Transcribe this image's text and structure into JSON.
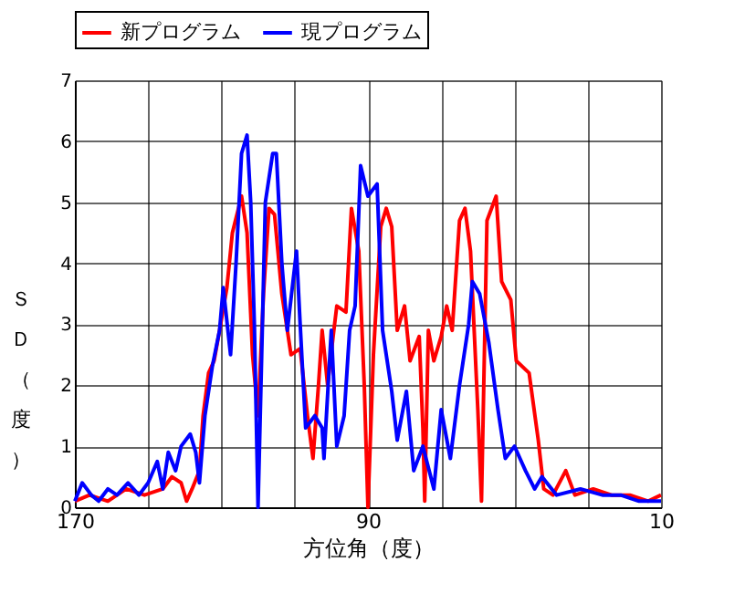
{
  "chart_data": {
    "type": "line",
    "xlabel": "方位角（度）",
    "ylabel": "ＳＤ（度）",
    "xlim": [
      170,
      10
    ],
    "ylim": [
      0,
      7
    ],
    "xticks": [
      170,
      {
        "value": 150,
        "label": null
      },
      {
        "value": 130,
        "label": null
      },
      {
        "value": 110,
        "label": null
      },
      90,
      {
        "value": 70,
        "label": null
      },
      {
        "value": 50,
        "label": null
      },
      {
        "value": 30,
        "label": null
      },
      10
    ],
    "yticks": [
      0,
      1,
      2,
      3,
      4,
      5,
      6,
      7
    ],
    "grid": true,
    "legend": "top",
    "marker": "none",
    "line_style": "solid",
    "series": [
      {
        "name": "新プログラム",
        "color": "#ff0000",
        "x": [
          170,
          166,
          161,
          156,
          151,
          146,
          143.5,
          141,
          139.5,
          138,
          136,
          135,
          133.5,
          132,
          130.5,
          128.5,
          127,
          124.5,
          123,
          121.5,
          120,
          118.5,
          117,
          115.5,
          113.5,
          111,
          108.5,
          106.5,
          105,
          103.5,
          102.5,
          101,
          99.5,
          98.5,
          96,
          94.5,
          92.5,
          91,
          90,
          88.5,
          86.5,
          85,
          83.5,
          82,
          80,
          78.5,
          76,
          75,
          74.5,
          73.5,
          72,
          70,
          68.5,
          67,
          65,
          63.5,
          62,
          60,
          59,
          57.5,
          55,
          53.5,
          51,
          49.5,
          46,
          43.5,
          42,
          39.5,
          36,
          33.5,
          28.5,
          23.5,
          18.5,
          13.5,
          10
        ],
        "values": [
          0.1,
          0.2,
          0.1,
          0.3,
          0.2,
          0.3,
          0.5,
          0.4,
          0.1,
          0.3,
          0.6,
          1.5,
          2.2,
          2.4,
          2.9,
          3.6,
          4.5,
          5.1,
          4.5,
          2.5,
          1.5,
          3.5,
          4.9,
          4.8,
          3.5,
          2.5,
          2.6,
          1.5,
          0.8,
          2.0,
          2.9,
          2.0,
          2.8,
          3.3,
          3.2,
          4.9,
          4.2,
          2.0,
          0.0,
          2.5,
          4.6,
          4.9,
          4.6,
          2.9,
          3.3,
          2.4,
          2.8,
          1.3,
          0.1,
          2.9,
          2.4,
          2.8,
          3.3,
          2.9,
          4.7,
          4.9,
          4.2,
          1.6,
          0.1,
          4.7,
          5.1,
          3.7,
          3.4,
          2.4,
          2.2,
          1.1,
          0.3,
          0.2,
          0.6,
          0.2,
          0.3,
          0.2,
          0.2,
          0.1,
          0.2
        ]
      },
      {
        "name": "現プログラム",
        "color": "#0000ff",
        "x": [
          170,
          168,
          165.5,
          163.5,
          161,
          158.5,
          155.5,
          152.5,
          150,
          147.5,
          146,
          144.5,
          142.5,
          141,
          138.5,
          137,
          136,
          134.5,
          132.5,
          130.5,
          129.5,
          127.5,
          126,
          124.5,
          123,
          122,
          121,
          120,
          119,
          118,
          116,
          115,
          113.5,
          112,
          109.5,
          108.5,
          107,
          104.5,
          102.5,
          102,
          100,
          98.5,
          96.5,
          95,
          93.5,
          92,
          90,
          87.5,
          86,
          83.5,
          82,
          79.5,
          77.5,
          75,
          72,
          70,
          67.5,
          65,
          62.5,
          61.5,
          59.5,
          57,
          54.5,
          52.5,
          50,
          47,
          44.5,
          42.5,
          38.5,
          32,
          26,
          21,
          16,
          10
        ],
        "values": [
          0.1,
          0.4,
          0.2,
          0.1,
          0.3,
          0.2,
          0.4,
          0.2,
          0.4,
          0.75,
          0.3,
          0.9,
          0.6,
          1.0,
          1.2,
          0.9,
          0.4,
          1.5,
          2.3,
          2.9,
          3.6,
          2.5,
          4.0,
          5.8,
          6.1,
          5.0,
          3.0,
          0.0,
          2.5,
          5.0,
          5.8,
          5.8,
          4.0,
          2.9,
          4.2,
          3.0,
          1.3,
          1.5,
          1.3,
          0.8,
          2.9,
          1.0,
          1.5,
          2.9,
          3.3,
          5.6,
          5.1,
          5.3,
          2.9,
          1.9,
          1.1,
          1.9,
          0.6,
          1.0,
          0.3,
          1.6,
          0.8,
          2.0,
          3.0,
          3.7,
          3.5,
          2.7,
          1.6,
          0.8,
          1.0,
          0.6,
          0.3,
          0.5,
          0.2,
          0.3,
          0.2,
          0.2,
          0.1,
          0.1
        ]
      }
    ]
  }
}
